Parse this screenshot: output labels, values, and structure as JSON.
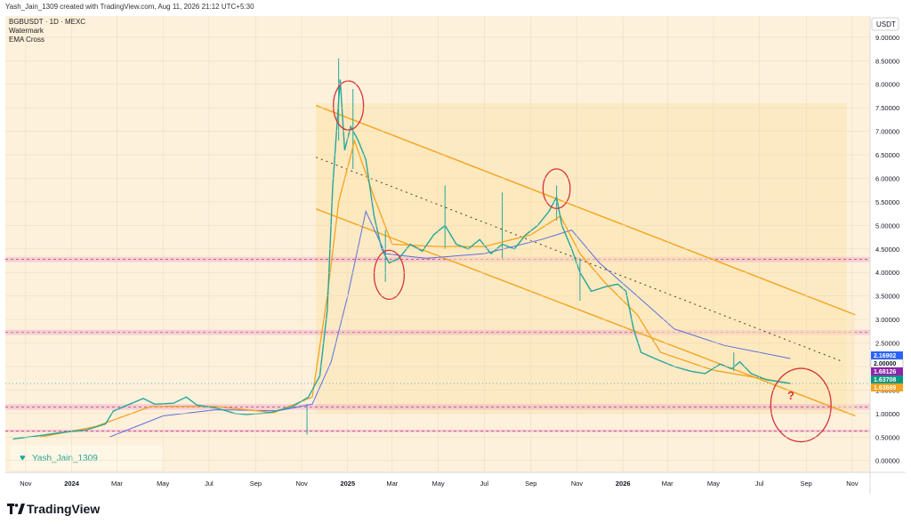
{
  "header": {
    "created_text": "Yash_Jain_1309 created with TradingView.com, Aug 11, 2026 21:12 UTC+5:30"
  },
  "chart_info": {
    "symbol_line": "BGBUSDT · 1D · MEXC",
    "indicator_1": "Watermark",
    "indicator_2": "EMA Cross"
  },
  "currency_label": "USDT",
  "watermark": {
    "label": "Yash_Jain_1309",
    "icon": "green-heart-icon"
  },
  "annotation_question": "?",
  "footer": {
    "brand": "TradingView",
    "logo_icon": "tradingview-logo-icon"
  },
  "colors": {
    "up": "#26a69a",
    "down": "#ef5350",
    "ema_fast": "#f7a21b",
    "ema_slow": "#5b6ee1",
    "channel": "#f5a623",
    "channel_fill": "#fde7b8",
    "zone": "#e9a6c9",
    "zone_line": "#c2185b",
    "circle": "#d6313a",
    "background": "#fdf1dc"
  },
  "chart_data": {
    "type": "candlestick",
    "y_axis": {
      "ticks": [
        "9.00000",
        "8.50000",
        "8.00000",
        "7.50000",
        "7.00000",
        "6.50000",
        "6.00000",
        "5.50000",
        "5.00000",
        "4.50000",
        "4.00000",
        "3.50000",
        "3.00000",
        "2.50000",
        "2.00000",
        "1.50000",
        "1.00000",
        "0.50000",
        "0.00000"
      ],
      "range": [
        -0.1,
        9.3
      ]
    },
    "x_axis": {
      "ticks": [
        "Nov",
        "2024",
        "Mar",
        "May",
        "Jul",
        "Sep",
        "Nov",
        "2025",
        "Mar",
        "May",
        "Jul",
        "Sep",
        "Nov",
        "2026",
        "Mar",
        "May",
        "Jul",
        "Sep",
        "Nov"
      ],
      "range": [
        "2023-10-05",
        "2026-11-20"
      ]
    },
    "price_labels": [
      {
        "value": "2.16902",
        "color": "#2962ff"
      },
      {
        "value": "2.00000",
        "color": "#ffffff"
      },
      {
        "value": "1.68126",
        "color": "#8e24aa"
      },
      {
        "value": "1.63708",
        "color": "#089981"
      },
      {
        "value": "1.63689",
        "color": "#f7a21b"
      }
    ],
    "price_path": [
      [
        "2023-10-15",
        0.46
      ],
      [
        "2023-11-15",
        0.52
      ],
      [
        "2023-12-20",
        0.6
      ],
      [
        "2024-01-20",
        0.65
      ],
      [
        "2024-02-15",
        0.78
      ],
      [
        "2024-02-25",
        1.05
      ],
      [
        "2024-03-15",
        1.18
      ],
      [
        "2024-04-05",
        1.32
      ],
      [
        "2024-04-20",
        1.2
      ],
      [
        "2024-05-15",
        1.22
      ],
      [
        "2024-06-01",
        1.35
      ],
      [
        "2024-06-15",
        1.18
      ],
      [
        "2024-07-10",
        1.12
      ],
      [
        "2024-08-05",
        1.0
      ],
      [
        "2024-08-20",
        0.98
      ],
      [
        "2024-09-20",
        1.02
      ],
      [
        "2024-10-20",
        1.15
      ],
      [
        "2024-11-10",
        1.35
      ],
      [
        "2024-11-25",
        1.8
      ],
      [
        "2024-12-05",
        3.2
      ],
      [
        "2024-12-12",
        5.8
      ],
      [
        "2024-12-18",
        7.2
      ],
      [
        "2024-12-22",
        8.1
      ],
      [
        "2024-12-28",
        6.6
      ],
      [
        "2025-01-05",
        7.1
      ],
      [
        "2025-01-15",
        6.8
      ],
      [
        "2025-01-25",
        6.4
      ],
      [
        "2025-02-05",
        5.2
      ],
      [
        "2025-02-15",
        4.5
      ],
      [
        "2025-02-25",
        4.2
      ],
      [
        "2025-03-10",
        4.3
      ],
      [
        "2025-03-25",
        4.6
      ],
      [
        "2025-04-10",
        4.45
      ],
      [
        "2025-04-25",
        4.8
      ],
      [
        "2025-05-10",
        5.0
      ],
      [
        "2025-05-25",
        4.6
      ],
      [
        "2025-06-10",
        4.5
      ],
      [
        "2025-06-25",
        4.7
      ],
      [
        "2025-07-10",
        4.4
      ],
      [
        "2025-07-25",
        4.6
      ],
      [
        "2025-08-10",
        4.5
      ],
      [
        "2025-08-25",
        4.8
      ],
      [
        "2025-09-10",
        5.0
      ],
      [
        "2025-09-25",
        5.3
      ],
      [
        "2025-10-05",
        5.6
      ],
      [
        "2025-10-12",
        5.0
      ],
      [
        "2025-10-25",
        4.5
      ],
      [
        "2025-11-05",
        4.0
      ],
      [
        "2025-11-20",
        3.6
      ],
      [
        "2025-12-10",
        3.7
      ],
      [
        "2025-12-25",
        3.75
      ],
      [
        "2026-01-05",
        3.6
      ],
      [
        "2026-01-15",
        2.8
      ],
      [
        "2026-01-25",
        2.3
      ],
      [
        "2026-02-15",
        2.15
      ],
      [
        "2026-03-10",
        2.0
      ],
      [
        "2026-04-01",
        1.9
      ],
      [
        "2026-04-20",
        1.85
      ],
      [
        "2026-05-10",
        2.05
      ],
      [
        "2026-05-25",
        1.95
      ],
      [
        "2026-06-05",
        2.1
      ],
      [
        "2026-06-20",
        1.85
      ],
      [
        "2026-07-10",
        1.72
      ],
      [
        "2026-08-11",
        1.64
      ]
    ],
    "wicks": [
      [
        "2024-11-08",
        0.55,
        1.2
      ],
      [
        "2024-12-20",
        6.8,
        8.55
      ],
      [
        "2025-01-08",
        6.2,
        7.9
      ],
      [
        "2025-02-20",
        3.8,
        4.9
      ],
      [
        "2025-05-10",
        4.5,
        5.85
      ],
      [
        "2025-07-25",
        4.3,
        5.7
      ],
      [
        "2025-10-05",
        5.1,
        5.85
      ],
      [
        "2025-11-05",
        3.4,
        4.3
      ],
      [
        "2026-05-28",
        1.9,
        2.3
      ]
    ],
    "ema_fast_path": [
      [
        "2023-11-20",
        0.5
      ],
      [
        "2024-02-01",
        0.72
      ],
      [
        "2024-04-15",
        1.15
      ],
      [
        "2024-07-10",
        1.15
      ],
      [
        "2024-09-25",
        1.02
      ],
      [
        "2024-11-15",
        1.35
      ],
      [
        "2024-12-05",
        3.5
      ],
      [
        "2024-12-20",
        5.5
      ],
      [
        "2025-01-10",
        6.8
      ],
      [
        "2025-02-05",
        5.6
      ],
      [
        "2025-03-01",
        4.6
      ],
      [
        "2025-05-01",
        4.55
      ],
      [
        "2025-07-01",
        4.55
      ],
      [
        "2025-09-01",
        4.8
      ],
      [
        "2025-10-10",
        5.2
      ],
      [
        "2025-11-05",
        4.4
      ],
      [
        "2025-12-10",
        3.75
      ],
      [
        "2026-01-20",
        3.1
      ],
      [
        "2026-02-20",
        2.3
      ],
      [
        "2026-05-01",
        1.92
      ],
      [
        "2026-08-11",
        1.64
      ]
    ],
    "ema_slow_path": [
      [
        "2024-02-20",
        0.5
      ],
      [
        "2024-05-01",
        0.95
      ],
      [
        "2024-07-10",
        1.08
      ],
      [
        "2024-10-01",
        1.06
      ],
      [
        "2024-11-15",
        1.2
      ],
      [
        "2024-12-10",
        2.1
      ],
      [
        "2025-01-01",
        3.5
      ],
      [
        "2025-01-25",
        5.3
      ],
      [
        "2025-02-20",
        4.4
      ],
      [
        "2025-04-15",
        4.3
      ],
      [
        "2025-07-01",
        4.4
      ],
      [
        "2025-09-15",
        4.7
      ],
      [
        "2025-10-25",
        4.9
      ],
      [
        "2025-12-01",
        4.2
      ],
      [
        "2026-01-20",
        3.5
      ],
      [
        "2026-03-10",
        2.8
      ],
      [
        "2026-05-15",
        2.45
      ],
      [
        "2026-08-11",
        2.17
      ]
    ],
    "channel": {
      "upper": [
        [
          "2024-11-20",
          7.55
        ],
        [
          "2026-11-05",
          3.1
        ]
      ],
      "middle": [
        [
          "2024-11-20",
          6.45
        ],
        [
          "2026-10-20",
          2.1
        ]
      ],
      "lower": [
        [
          "2024-11-20",
          5.35
        ],
        [
          "2026-11-05",
          0.95
        ]
      ]
    },
    "horizontal_zones": [
      {
        "from": 4.22,
        "to": 4.33
      },
      {
        "from": 2.67,
        "to": 2.78
      },
      {
        "from": 1.08,
        "to": 1.2
      },
      {
        "from": 0.6,
        "to": 0.66
      }
    ],
    "circles": [
      {
        "date": "2025-01-02",
        "price": 7.55,
        "r_days": 20,
        "r_price": 0.52
      },
      {
        "date": "2025-02-25",
        "price": 3.95,
        "r_days": 20,
        "r_price": 0.52
      },
      {
        "date": "2025-10-05",
        "price": 5.78,
        "r_days": 18,
        "r_price": 0.42
      },
      {
        "date": "2026-08-25",
        "price": 1.18,
        "r_days": 40,
        "r_price": 0.78
      }
    ]
  }
}
